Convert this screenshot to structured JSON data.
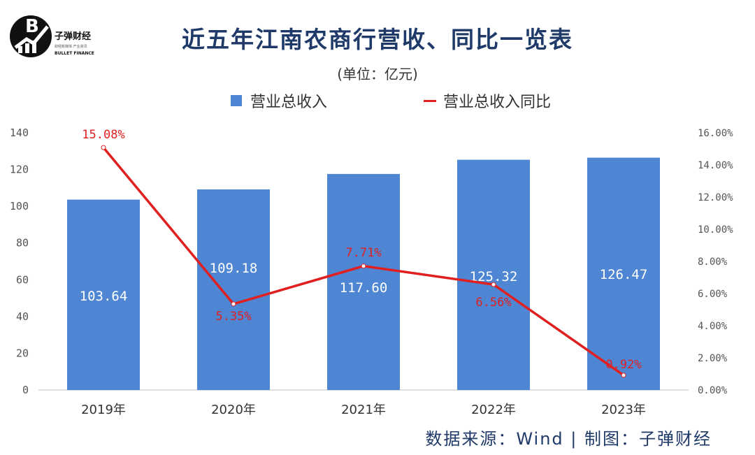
{
  "logo": {
    "name": "子弹财经",
    "sub": "财经新媒体·产业资讯",
    "en": "BULLET FINANCE"
  },
  "title": "近五年江南农商行营收、同比一览表",
  "subtitle": "(单位：亿元)",
  "source": "数据来源：Wind  |  制图：子弹财经",
  "colors": {
    "bar": "#4f86d4",
    "line": "#e02020",
    "title": "#1f3a68"
  },
  "chart_data": {
    "type": "bar",
    "title": "近五年江南农商行营收、同比一览表",
    "categories": [
      "2019年",
      "2020年",
      "2021年",
      "2022年",
      "2023年"
    ],
    "series": [
      {
        "name": "营业总收入",
        "type": "bar",
        "axis": "left",
        "values": [
          103.64,
          109.18,
          117.6,
          125.32,
          126.47
        ],
        "labels": [
          "103.64",
          "109.18",
          "117.60",
          "125.32",
          "126.47"
        ]
      },
      {
        "name": "营业总收入同比",
        "type": "line",
        "axis": "right",
        "values": [
          15.08,
          5.35,
          7.71,
          6.56,
          0.92
        ],
        "labels": [
          "15.08%",
          "5.35%",
          "7.71%",
          "6.56%",
          "0.92%"
        ]
      }
    ],
    "y_left": {
      "min": 0,
      "max": 140,
      "step": 20,
      "ticks": [
        "0",
        "20",
        "40",
        "60",
        "80",
        "100",
        "120",
        "140"
      ]
    },
    "y_right": {
      "min": 0,
      "max": 16,
      "step": 2,
      "ticks": [
        "0.00%",
        "2.00%",
        "4.00%",
        "6.00%",
        "8.00%",
        "10.00%",
        "12.00%",
        "14.00%",
        "16.00%"
      ]
    },
    "legend_position": "top"
  }
}
